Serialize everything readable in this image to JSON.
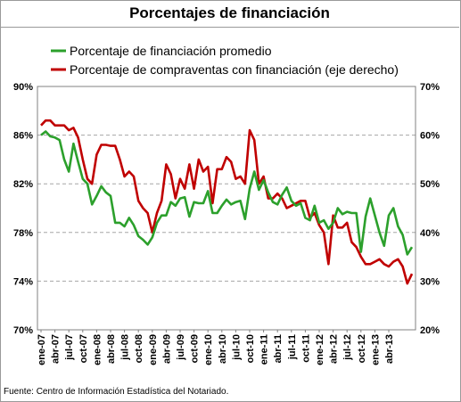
{
  "chart_data": {
    "type": "line",
    "title": "Porcentajes de financiación",
    "source": "Fuente: Centro de Información Estadística del Notariado.",
    "x_tick_labels": [
      "ene-07",
      "abr-07",
      "jul-07",
      "oct-07",
      "ene-08",
      "abr-08",
      "jul-08",
      "oct-08",
      "ene-09",
      "abr-09",
      "jul-09",
      "oct-09",
      "ene-10",
      "abr-10",
      "jul-10",
      "oct-10",
      "ene-11",
      "abr-11",
      "jul-11",
      "oct-11",
      "ene-12",
      "abr-12",
      "jul-12",
      "oct-12",
      "ene-13",
      "abr-13"
    ],
    "x_start": "ene-07",
    "x_end": "jun-13",
    "y_left": {
      "ylim": [
        70,
        90
      ],
      "ticks": [
        "70%",
        "74%",
        "78%",
        "82%",
        "86%",
        "90%"
      ]
    },
    "y_right": {
      "ylim": [
        20,
        70
      ],
      "ticks": [
        "20%",
        "30%",
        "40%",
        "50%",
        "60%",
        "70%"
      ]
    },
    "grid": true,
    "legend_position": "top",
    "series": [
      {
        "name": "Porcentaje de financiación promedio",
        "axis": "left",
        "color": "#2ca02c",
        "values": [
          86.0,
          86.3,
          85.9,
          85.8,
          85.6,
          84.0,
          83.0,
          85.3,
          83.8,
          82.4,
          82.0,
          80.3,
          81.0,
          81.8,
          81.3,
          81.0,
          78.8,
          78.8,
          78.5,
          79.2,
          78.6,
          77.7,
          77.4,
          77.0,
          77.6,
          78.8,
          79.4,
          79.4,
          80.5,
          80.2,
          80.8,
          80.9,
          79.3,
          80.5,
          80.4,
          80.4,
          81.4,
          79.6,
          79.6,
          80.2,
          80.7,
          80.3,
          80.5,
          80.6,
          79.1,
          81.6,
          83.0,
          81.5,
          82.3,
          81.3,
          80.5,
          80.3,
          81.1,
          81.7,
          80.6,
          80.2,
          80.4,
          79.2,
          79.0,
          80.2,
          78.8,
          79.0,
          78.3,
          78.8,
          80.0,
          79.5,
          79.7,
          79.6,
          79.6,
          76.4,
          79.3,
          80.8,
          79.4,
          78.0,
          76.9,
          79.4,
          80.0,
          78.5,
          77.8,
          76.2,
          76.8
        ]
      },
      {
        "name": "Porcentaje de compraventas con financiación (eje derecho)",
        "axis": "right",
        "color": "#c00000",
        "values": [
          62.0,
          63.0,
          63.0,
          62.0,
          62.0,
          62.0,
          61.0,
          61.5,
          59.5,
          55.0,
          51.0,
          50.0,
          56.0,
          58.0,
          58.0,
          57.8,
          57.8,
          55.0,
          51.5,
          52.5,
          51.5,
          46.5,
          45.0,
          44.0,
          40.0,
          44.0,
          46.5,
          54.0,
          52.0,
          47.0,
          51.0,
          49.0,
          54.0,
          49.0,
          55.0,
          52.5,
          53.5,
          46.0,
          53.0,
          53.0,
          55.5,
          54.5,
          51.0,
          51.5,
          50.0,
          61.0,
          59.0,
          50.0,
          51.5,
          47.0,
          47.0,
          48.0,
          47.0,
          45.0,
          45.5,
          46.0,
          46.5,
          46.5,
          43.0,
          44.0,
          41.5,
          40.0,
          33.5,
          43.5,
          41.0,
          41.0,
          42.0,
          38.0,
          37.0,
          35.0,
          33.5,
          33.5,
          34.0,
          34.5,
          33.5,
          33.0,
          34.0,
          34.5,
          33.0,
          29.5,
          31.5
        ]
      }
    ]
  }
}
